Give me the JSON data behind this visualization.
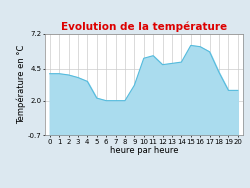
{
  "title": "Evolution de la température",
  "xlabel": "heure par heure",
  "ylabel": "Température en °C",
  "hours": [
    0,
    1,
    2,
    3,
    4,
    5,
    6,
    7,
    8,
    9,
    10,
    11,
    12,
    13,
    14,
    15,
    16,
    17,
    18,
    19,
    20
  ],
  "values": [
    4.1,
    4.1,
    4.0,
    3.8,
    3.5,
    2.2,
    2.0,
    2.0,
    2.0,
    3.2,
    5.3,
    5.5,
    4.8,
    4.9,
    5.0,
    6.3,
    6.2,
    5.8,
    4.2,
    2.8,
    2.8
  ],
  "ylim": [
    -0.7,
    7.2
  ],
  "yticks": [
    -0.7,
    2.0,
    4.5,
    7.2
  ],
  "ytick_labels": [
    "-0.7",
    "2.0",
    "4.5",
    "7.2"
  ],
  "fill_color": "#aadcee",
  "line_color": "#55bbdd",
  "title_color": "#dd0000",
  "bg_color": "#dce8f0",
  "plot_bg_color": "#ffffff",
  "grid_color": "#cccccc",
  "title_fontsize": 7.5,
  "axis_label_fontsize": 6.0,
  "tick_fontsize": 5.0
}
